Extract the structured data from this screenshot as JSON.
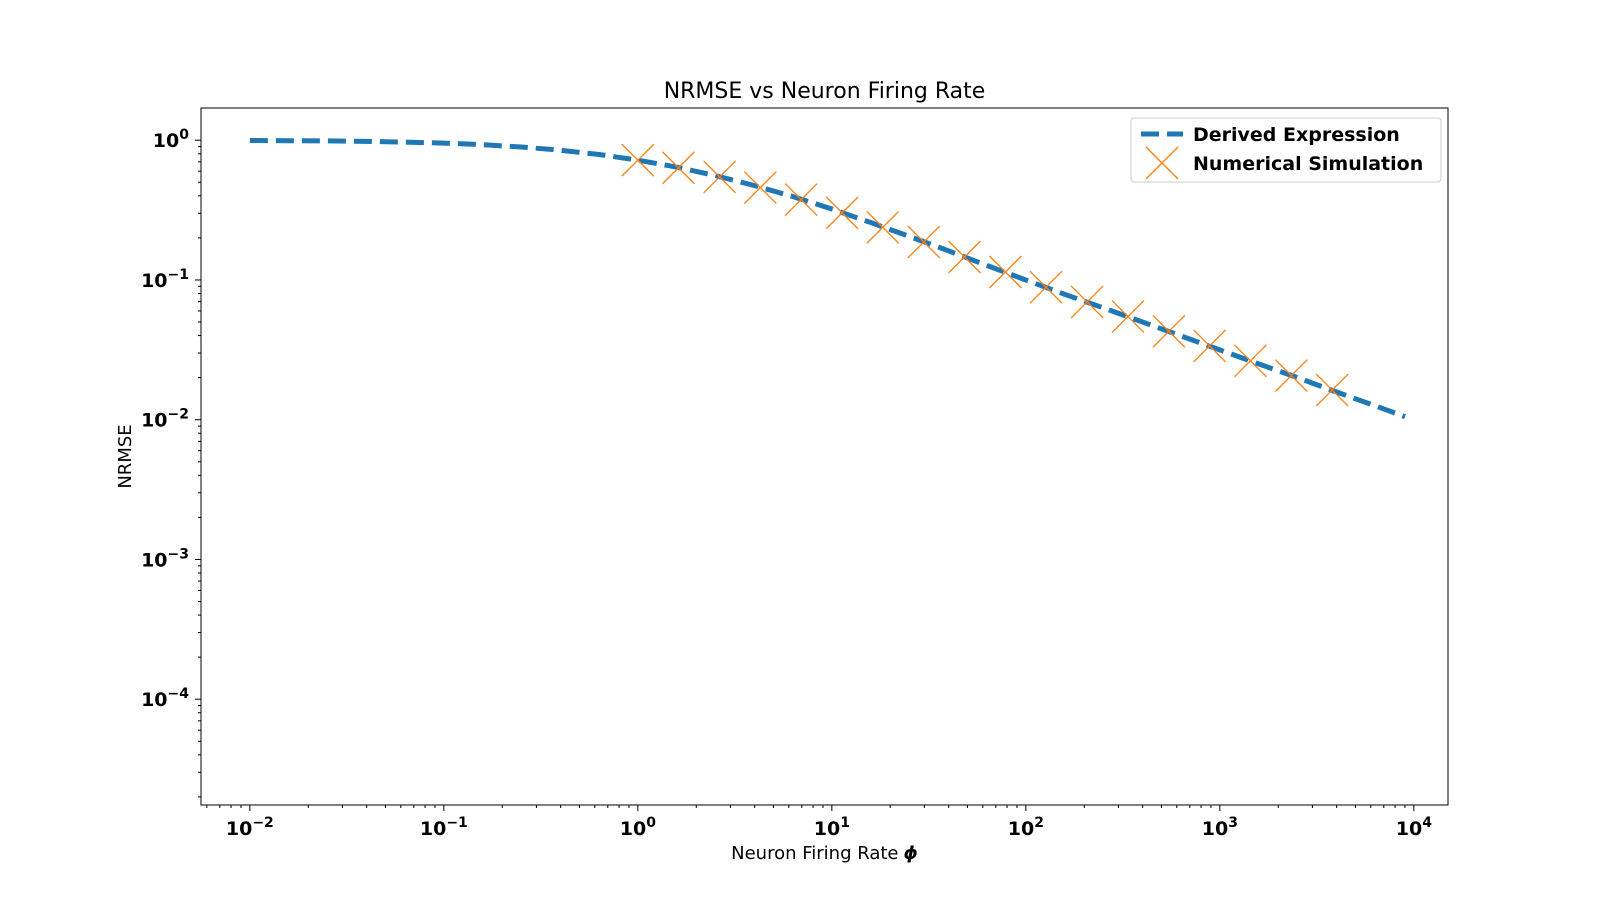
{
  "chart_data": {
    "type": "line",
    "title": "NRMSE vs Neuron Firing Rate",
    "xlabel": "Neuron Firing Rate",
    "xlabel_symbol": "ϕ",
    "ylabel": "NRMSE",
    "xscale": "log",
    "yscale": "log",
    "xlim": [
      0.0056,
      15000
    ],
    "ylim": [
      1.75e-05,
      1.7
    ],
    "grid": false,
    "legend_position": "upper right",
    "x_ticks": [
      {
        "base": "10",
        "exp": "−2"
      },
      {
        "base": "10",
        "exp": "−1"
      },
      {
        "base": "10",
        "exp": "0"
      },
      {
        "base": "10",
        "exp": "1"
      },
      {
        "base": "10",
        "exp": "2"
      },
      {
        "base": "10",
        "exp": "3"
      },
      {
        "base": "10",
        "exp": "4"
      }
    ],
    "y_ticks": [
      {
        "base": "10",
        "exp": "0"
      },
      {
        "base": "10",
        "exp": "−1"
      },
      {
        "base": "10",
        "exp": "−2"
      },
      {
        "base": "10",
        "exp": "−3"
      },
      {
        "base": "10",
        "exp": "−4"
      }
    ],
    "series": [
      {
        "name": "Derived Expression",
        "style": "dashed line",
        "color": "#1f77b4",
        "x": [
          0.01,
          0.0158,
          0.0251,
          0.0398,
          0.0631,
          0.1,
          0.158,
          0.251,
          0.398,
          0.631,
          1,
          1.58,
          2.51,
          3.98,
          6.31,
          10,
          15.8,
          25.1,
          39.8,
          63.1,
          100,
          158,
          251,
          398,
          631,
          1000,
          1585,
          2512,
          3981,
          6310,
          9000
        ],
        "y": [
          0.995,
          0.992,
          0.988,
          0.981,
          0.97,
          0.953,
          0.928,
          0.894,
          0.848,
          0.79,
          0.72,
          0.642,
          0.558,
          0.474,
          0.395,
          0.322,
          0.258,
          0.205,
          0.162,
          0.127,
          0.1,
          0.0791,
          0.0631,
          0.0501,
          0.0398,
          0.0316,
          0.0251,
          0.02,
          0.0158,
          0.0126,
          0.0105
        ]
      },
      {
        "name": "Numerical Simulation",
        "style": "x markers",
        "color": "#ff7f0e",
        "x": [
          1.0,
          1.62,
          2.64,
          4.28,
          6.95,
          11.3,
          18.3,
          29.8,
          48.3,
          78.5,
          127,
          207,
          336,
          546,
          886,
          1438,
          2336,
          3793
        ],
        "y": [
          0.72,
          0.635,
          0.546,
          0.458,
          0.376,
          0.302,
          0.238,
          0.187,
          0.146,
          0.114,
          0.0888,
          0.0696,
          0.0547,
          0.0429,
          0.0337,
          0.0264,
          0.0207,
          0.0163
        ]
      }
    ]
  }
}
